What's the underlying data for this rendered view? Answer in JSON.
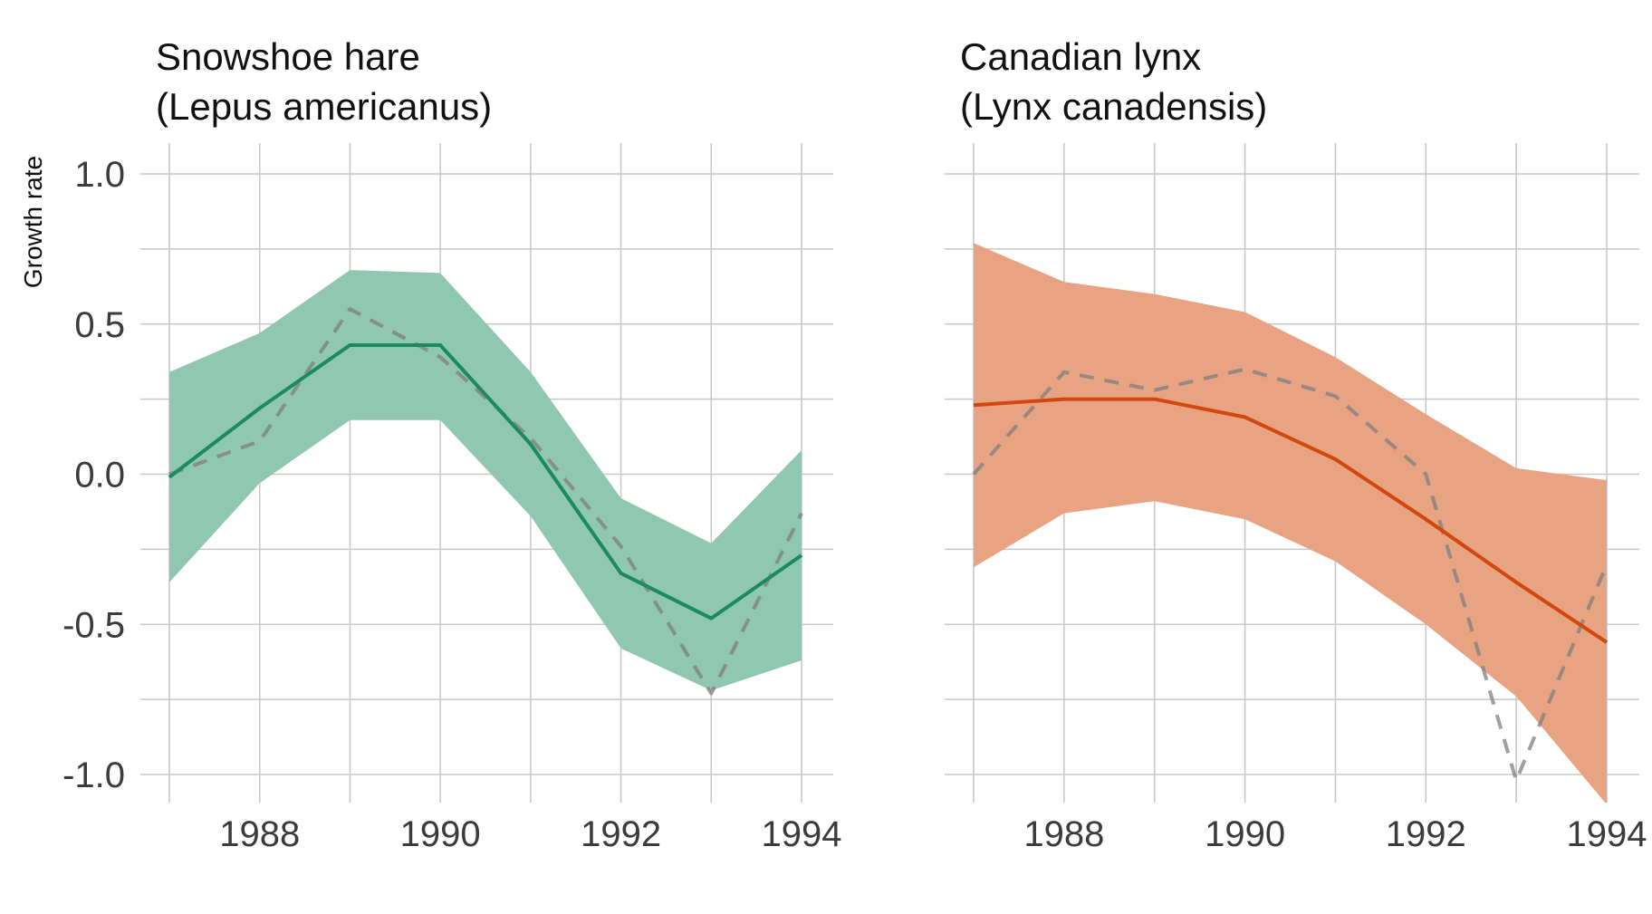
{
  "chart_data": [
    {
      "type": "line",
      "title_line1": "Snowshoe hare",
      "title_line2": "(Lepus americanus)",
      "ylabel": "Growth rate",
      "x": [
        1987,
        1988,
        1989,
        1990,
        1991,
        1992,
        1993,
        1994
      ],
      "xticks": [
        1988,
        1990,
        1992,
        1994
      ],
      "xlim": [
        1987,
        1994
      ],
      "yticks": [
        1.0,
        0.5,
        0.0,
        -0.5,
        -1.0
      ],
      "yticklabels": [
        "1.0",
        "0.5",
        "0.0",
        "-0.5",
        "-1.0"
      ],
      "ylim": [
        -1.08,
        1.08
      ],
      "band_upper": [
        0.34,
        0.47,
        0.68,
        0.67,
        0.34,
        -0.08,
        -0.23,
        0.08
      ],
      "band_lower": [
        -0.36,
        -0.03,
        0.18,
        0.18,
        -0.14,
        -0.58,
        -0.72,
        -0.62
      ],
      "fitted": [
        -0.01,
        0.22,
        0.43,
        0.43,
        0.1,
        -0.33,
        -0.48,
        -0.27
      ],
      "observed": [
        0.0,
        0.11,
        0.55,
        0.39,
        0.12,
        -0.24,
        -0.73,
        -0.13
      ],
      "fill_color": "#8fc7b0",
      "line_color": "#1b8a64",
      "observed_color": "#7f7f7f",
      "grid": true
    },
    {
      "type": "line",
      "title_line1": "Canadian lynx",
      "title_line2": "(Lynx canadensis)",
      "ylabel": "",
      "x": [
        1987,
        1988,
        1989,
        1990,
        1991,
        1992,
        1993,
        1994
      ],
      "xticks": [
        1988,
        1990,
        1992,
        1994
      ],
      "xlim": [
        1987,
        1994
      ],
      "yticks": [
        1.0,
        0.5,
        0.0,
        -0.5,
        -1.0
      ],
      "yticklabels": [],
      "ylim": [
        -1.08,
        1.08
      ],
      "band_upper": [
        0.77,
        0.64,
        0.6,
        0.54,
        0.39,
        0.2,
        0.02,
        -0.02
      ],
      "band_lower": [
        -0.31,
        -0.13,
        -0.09,
        -0.15,
        -0.29,
        -0.5,
        -0.74,
        -1.1
      ],
      "fitted": [
        0.23,
        0.25,
        0.25,
        0.19,
        0.05,
        -0.15,
        -0.36,
        -0.56
      ],
      "observed": [
        0.0,
        0.34,
        0.28,
        0.35,
        0.26,
        0.0,
        -1.02,
        -0.3
      ],
      "fill_color": "#e8a482",
      "line_color": "#d2470d",
      "observed_color": "#7f7f7f",
      "grid": true
    }
  ]
}
